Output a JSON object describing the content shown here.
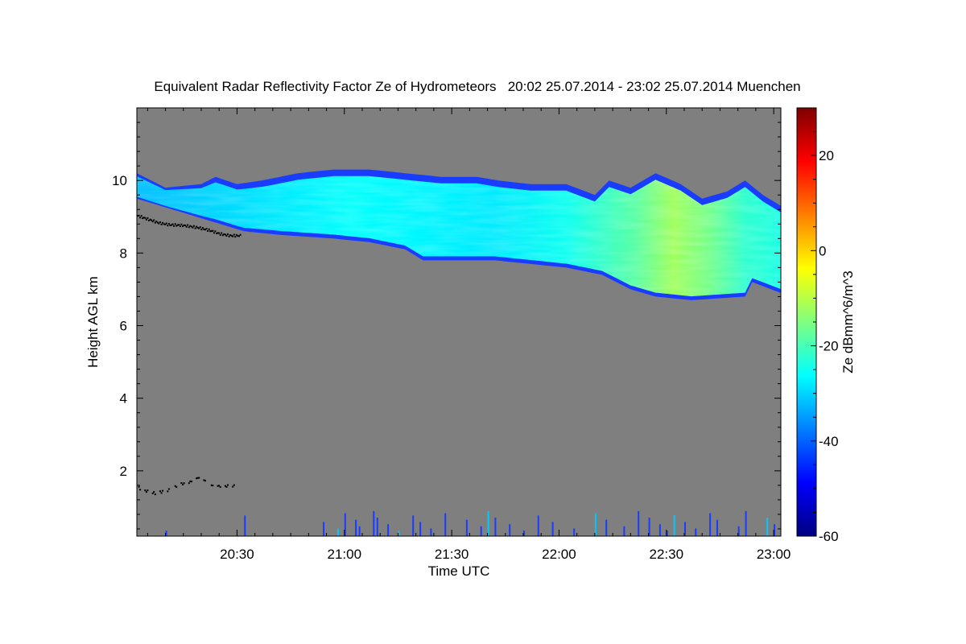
{
  "chart_data": {
    "type": "heatmap",
    "title": "Equivalent Radar Reflectivity Factor Ze of Hydrometeors   20:02 25.07.2014 - 23:02 25.07.2014 Muenchen",
    "xlabel": "Time UTC",
    "ylabel": "Height AGL km",
    "colorbar_label": "Ze dBmm^6/m^3",
    "x_range_minutes": [
      0,
      180
    ],
    "x_start": "20:02",
    "x_end": "23:02",
    "ylim": [
      0.2,
      12.0
    ],
    "x_ticks": [
      {
        "minute": 28,
        "label": "20:30"
      },
      {
        "minute": 58,
        "label": "21:00"
      },
      {
        "minute": 88,
        "label": "21:30"
      },
      {
        "minute": 118,
        "label": "22:00"
      },
      {
        "minute": 148,
        "label": "22:30"
      },
      {
        "minute": 178,
        "label": "23:00"
      }
    ],
    "y_ticks": [
      2,
      4,
      6,
      8,
      10
    ],
    "colorbar": {
      "range": [
        -60,
        30
      ],
      "ticks": [
        -60,
        -40,
        -20,
        0,
        20
      ],
      "stops": [
        "#00007f",
        "#0000ff",
        "#007fff",
        "#00ffff",
        "#7fff7f",
        "#ffff00",
        "#ff7f00",
        "#ff0000",
        "#7f0000"
      ]
    },
    "no_data_color": "#7f7f7f",
    "cloud_layer": {
      "top_km": [
        [
          0,
          10.2
        ],
        [
          8,
          9.8
        ],
        [
          18,
          9.9
        ],
        [
          22,
          10.1
        ],
        [
          28,
          9.9
        ],
        [
          35,
          10.0
        ],
        [
          45,
          10.2
        ],
        [
          55,
          10.3
        ],
        [
          65,
          10.3
        ],
        [
          75,
          10.2
        ],
        [
          85,
          10.1
        ],
        [
          95,
          10.1
        ],
        [
          101,
          10.0
        ],
        [
          110,
          9.9
        ],
        [
          120,
          9.9
        ],
        [
          128,
          9.6
        ],
        [
          132,
          10.0
        ],
        [
          138,
          9.8
        ],
        [
          145,
          10.2
        ],
        [
          152,
          9.9
        ],
        [
          158,
          9.5
        ],
        [
          165,
          9.7
        ],
        [
          170,
          10.0
        ],
        [
          175,
          9.6
        ],
        [
          180,
          9.3
        ]
      ],
      "base_km": [
        [
          0,
          9.5
        ],
        [
          10,
          9.2
        ],
        [
          20,
          8.9
        ],
        [
          30,
          8.6
        ],
        [
          40,
          8.5
        ],
        [
          55,
          8.4
        ],
        [
          65,
          8.3
        ],
        [
          75,
          8.1
        ],
        [
          80,
          7.8
        ],
        [
          90,
          7.8
        ],
        [
          100,
          7.8
        ],
        [
          110,
          7.7
        ],
        [
          120,
          7.6
        ],
        [
          130,
          7.4
        ],
        [
          138,
          7.0
        ],
        [
          145,
          6.8
        ],
        [
          155,
          6.7
        ],
        [
          170,
          6.8
        ],
        [
          172,
          7.2
        ],
        [
          180,
          6.9
        ]
      ],
      "mean_ze": [
        [
          0,
          -32
        ],
        [
          20,
          -30
        ],
        [
          40,
          -28
        ],
        [
          60,
          -26
        ],
        [
          80,
          -27
        ],
        [
          100,
          -28
        ],
        [
          120,
          -25
        ],
        [
          140,
          -18
        ],
        [
          150,
          -12
        ],
        [
          160,
          -16
        ],
        [
          170,
          -22
        ],
        [
          180,
          -24
        ]
      ]
    },
    "ceilometer_upper_km": [
      [
        0,
        9.05
      ],
      [
        3,
        8.95
      ],
      [
        6,
        8.85
      ],
      [
        9,
        8.8
      ],
      [
        13,
        8.78
      ],
      [
        17,
        8.72
      ],
      [
        20,
        8.65
      ],
      [
        23,
        8.55
      ],
      [
        26,
        8.5
      ],
      [
        29,
        8.5
      ]
    ],
    "ceilometer_lower_km": [
      [
        0,
        1.6
      ],
      [
        1,
        1.5
      ],
      [
        5,
        1.4
      ],
      [
        9,
        1.5
      ],
      [
        12,
        1.65
      ],
      [
        14,
        1.7
      ],
      [
        16,
        1.75
      ],
      [
        17,
        1.85
      ],
      [
        19,
        1.75
      ],
      [
        21,
        1.6
      ],
      [
        27,
        1.6
      ]
    ],
    "ground_clutter_minutes": [
      8,
      30,
      52,
      56,
      58,
      61,
      62,
      66,
      67,
      70,
      73,
      77,
      79,
      82,
      86,
      92,
      96,
      98,
      100,
      104,
      108,
      112,
      116,
      122,
      128,
      131,
      136,
      140,
      143,
      146,
      148,
      150,
      153,
      156,
      160,
      162,
      168,
      170,
      176,
      178
    ]
  }
}
